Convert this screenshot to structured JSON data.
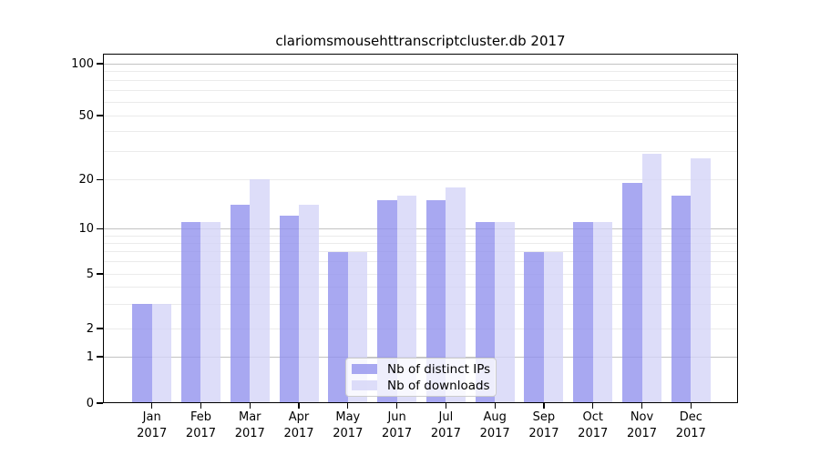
{
  "chart_data": {
    "type": "bar",
    "title": "clariomsmousehttranscriptcluster.db 2017",
    "categories": [
      "Jan 2017",
      "Feb 2017",
      "Mar 2017",
      "Apr 2017",
      "May 2017",
      "Jun 2017",
      "Jul 2017",
      "Aug 2017",
      "Sep 2017",
      "Oct 2017",
      "Nov 2017",
      "Dec 2017"
    ],
    "series": [
      {
        "name": "Nb of distinct IPs",
        "color": "rgba(146,146,238,0.8)",
        "solid_color": "#a8a8f1",
        "values": [
          3,
          11,
          14,
          12,
          7,
          15,
          15,
          11,
          7,
          11,
          19,
          16
        ]
      },
      {
        "name": "Nb of downloads",
        "color": "rgba(213,213,247,0.8)",
        "solid_color": "#dddcf9",
        "values": [
          3,
          11,
          20,
          14,
          7,
          16,
          18,
          11,
          7,
          11,
          29,
          27
        ]
      }
    ],
    "xlabel": "",
    "ylabel": "",
    "yscale": "symlog",
    "ylim": [
      0,
      100
    ],
    "yticks": [
      0,
      1,
      2,
      5,
      10,
      20,
      50,
      100
    ],
    "minor_gridlines": [
      2,
      3,
      4,
      5,
      6,
      7,
      8,
      9,
      20,
      30,
      40,
      50,
      60,
      70,
      80,
      90
    ],
    "major_gridlines": [
      1,
      10,
      100
    ],
    "grid": true,
    "legend_position": "lower center"
  },
  "colors": {
    "grid_major": "#c3c3c3",
    "grid_minor": "#ebebeb",
    "axis": "#000000",
    "legend_border": "#cccccc"
  }
}
